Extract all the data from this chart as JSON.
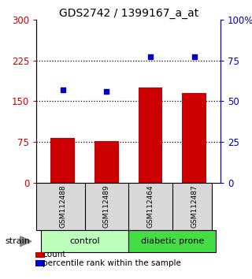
{
  "title": "GDS2742 / 1399167_a_at",
  "samples": [
    "GSM112488",
    "GSM112489",
    "GSM112464",
    "GSM112487"
  ],
  "counts": [
    82,
    77,
    175,
    165
  ],
  "percentiles": [
    57,
    56,
    77,
    77
  ],
  "groups": [
    {
      "label": "control",
      "span": [
        0,
        2
      ],
      "color": "#bbffbb"
    },
    {
      "label": "diabetic prone",
      "span": [
        2,
        4
      ],
      "color": "#44dd44"
    }
  ],
  "ylim_left": [
    0,
    300
  ],
  "ylim_right": [
    0,
    100
  ],
  "yticks_left": [
    0,
    75,
    150,
    225,
    300
  ],
  "yticks_right": [
    0,
    25,
    50,
    75,
    100
  ],
  "ytick_labels_left": [
    "0",
    "75",
    "150",
    "225",
    "300"
  ],
  "ytick_labels_right": [
    "0",
    "25",
    "50",
    "75",
    "100%"
  ],
  "bar_color": "#cc0000",
  "dot_color": "#0000cc",
  "bar_width": 0.55,
  "grid_color": "black",
  "left_tick_color": "#cc0000",
  "right_tick_color": "#0000cc",
  "strain_label": "strain",
  "legend_items": [
    {
      "label": "count",
      "color": "#cc0000"
    },
    {
      "label": "percentile rank within the sample",
      "color": "#0000cc"
    }
  ],
  "figsize": [
    3.2,
    3.54
  ],
  "dpi": 100
}
